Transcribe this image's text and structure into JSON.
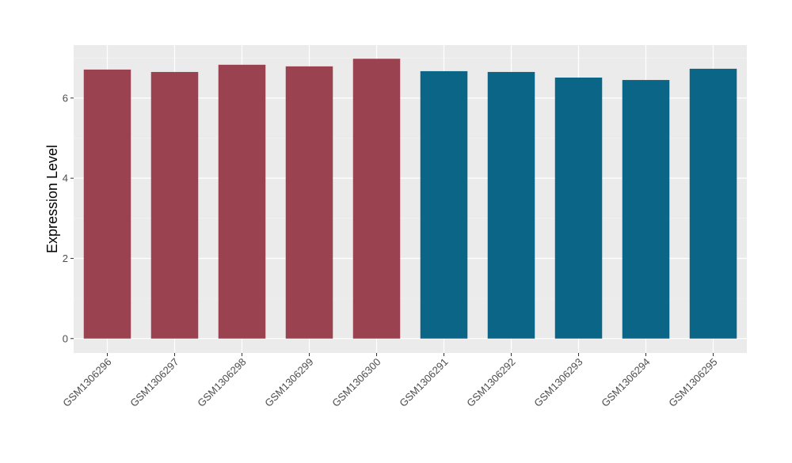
{
  "chart_data": {
    "type": "bar",
    "title": "",
    "xlabel": "",
    "ylabel": "Expression Level",
    "categories": [
      "GSM1306296",
      "GSM1306297",
      "GSM1306298",
      "GSM1306299",
      "GSM1306300",
      "GSM1306291",
      "GSM1306292",
      "GSM1306293",
      "GSM1306294",
      "GSM1306295"
    ],
    "values": [
      6.71,
      6.65,
      6.83,
      6.79,
      6.98,
      6.67,
      6.65,
      6.51,
      6.45,
      6.73
    ],
    "bar_colors": [
      "#9b4250",
      "#9b4250",
      "#9b4250",
      "#9b4250",
      "#9b4250",
      "#0b6586",
      "#0b6586",
      "#0b6586",
      "#0b6586",
      "#0b6586"
    ],
    "ylim": [
      -0.36,
      7.32
    ],
    "yticks": [
      0,
      2,
      4,
      6
    ],
    "grid": true,
    "panel_background": "#ebebeb",
    "legend": "none"
  }
}
